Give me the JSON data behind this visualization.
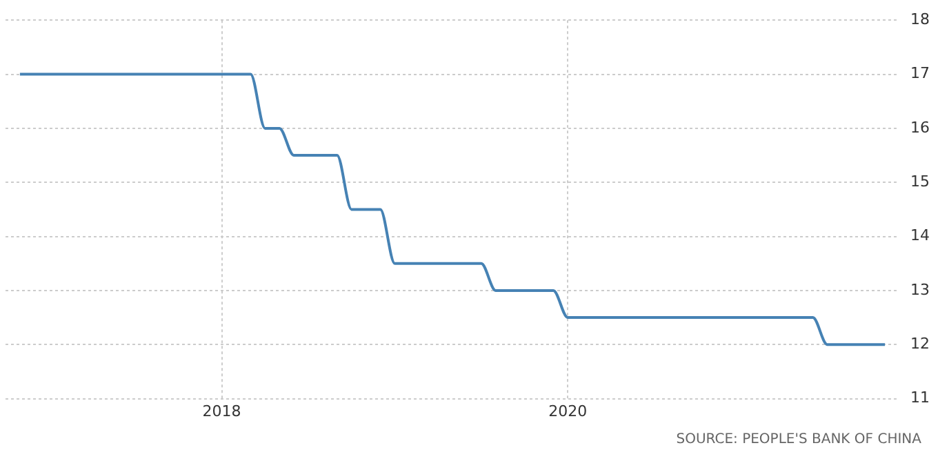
{
  "chart_data": {
    "type": "line",
    "x": [
      "2016-11",
      "2016-12",
      "2017-01",
      "2017-02",
      "2017-03",
      "2017-04",
      "2017-05",
      "2017-06",
      "2017-07",
      "2017-08",
      "2017-09",
      "2017-10",
      "2017-11",
      "2017-12",
      "2018-01",
      "2018-02",
      "2018-03",
      "2018-04",
      "2018-05",
      "2018-06",
      "2018-07",
      "2018-08",
      "2018-09",
      "2018-10",
      "2018-11",
      "2018-12",
      "2019-01",
      "2019-02",
      "2019-03",
      "2019-04",
      "2019-05",
      "2019-06",
      "2019-07",
      "2019-08",
      "2019-09",
      "2019-10",
      "2019-11",
      "2019-12",
      "2020-01",
      "2020-02",
      "2020-03",
      "2020-04",
      "2020-05",
      "2020-06",
      "2020-07",
      "2020-08",
      "2020-09",
      "2020-10",
      "2020-11",
      "2020-12",
      "2021-01",
      "2021-02",
      "2021-03",
      "2021-04",
      "2021-05",
      "2021-06",
      "2021-07",
      "2021-08",
      "2021-09",
      "2021-10",
      "2021-11"
    ],
    "series": [
      {
        "color": "#4682b4",
        "values": [
          17,
          17,
          17,
          17,
          17,
          17,
          17,
          17,
          17,
          17,
          17,
          17,
          17,
          17,
          17,
          17,
          17,
          16,
          16,
          15.5,
          15.5,
          15.5,
          15.5,
          14.5,
          14.5,
          14.5,
          13.5,
          13.5,
          13.5,
          13.5,
          13.5,
          13.5,
          13.5,
          13,
          13,
          13,
          13,
          13,
          12.5,
          12.5,
          12.5,
          12.5,
          12.5,
          12.5,
          12.5,
          12.5,
          12.5,
          12.5,
          12.5,
          12.5,
          12.5,
          12.5,
          12.5,
          12.5,
          12.5,
          12.5,
          12,
          12,
          12,
          12,
          12
        ]
      }
    ],
    "xlim": [
      "2016-10",
      "2021-12"
    ],
    "xticks": [
      {
        "value": "2018-01",
        "label": "2018"
      },
      {
        "value": "2020-01",
        "label": "2020"
      }
    ],
    "ylim": [
      11,
      18
    ],
    "yticks": [
      11,
      12,
      13,
      14,
      15,
      16,
      17,
      18
    ],
    "grid": true,
    "marker": "none",
    "line_style": "solid",
    "annotations": [
      "SOURCE: PEOPLE'S BANK OF CHINA"
    ]
  }
}
